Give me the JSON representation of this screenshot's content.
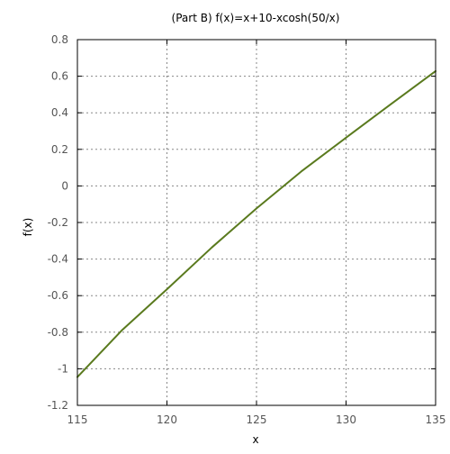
{
  "chart_data": {
    "type": "line",
    "title": "(Part B) f(x)=x+10-xcosh(50/x)",
    "xlabel": "x",
    "ylabel": "f(x)",
    "xlim": [
      115,
      135
    ],
    "ylim": [
      -1.2,
      0.8
    ],
    "xticks": [
      115,
      120,
      125,
      130,
      135
    ],
    "yticks": [
      -1.2,
      -1,
      -0.8,
      -0.6,
      -0.4,
      -0.2,
      0,
      0.2,
      0.4,
      0.6,
      0.8
    ],
    "grid": true,
    "series": [
      {
        "color": "#5a7a1e",
        "x": [
          115,
          117.5,
          120,
          122.5,
          125,
          127.5,
          130,
          132.5,
          135
        ],
        "y": [
          -1.045,
          -0.788,
          -0.565,
          -0.337,
          -0.123,
          0.079,
          0.264,
          0.447,
          0.628
        ]
      }
    ]
  }
}
